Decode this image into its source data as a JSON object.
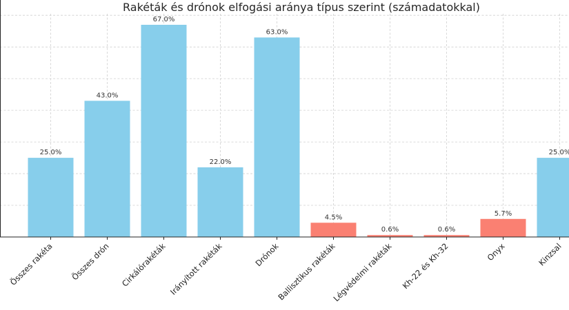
{
  "chart_data": {
    "type": "bar",
    "title": "Rakéták és drónok elfogási aránya típus szerint (számadatokkal)",
    "xlabel": "",
    "ylabel": "",
    "ylim": [
      0,
      75
    ],
    "grid": true,
    "categories": [
      "Összes rakéta",
      "Összes drón",
      "Cirkálórakéták",
      "Irányított rakéták",
      "Drónok",
      "Ballisztikus rakéták",
      "Légvédelmi rakéták",
      "Kh-22 és Kh-32",
      "Onyx",
      "Kinzsal"
    ],
    "values": [
      25.0,
      43.0,
      67.0,
      22.0,
      63.0,
      4.5,
      0.6,
      0.6,
      5.7,
      25.0
    ],
    "value_labels": [
      "25.0%",
      "43.0%",
      "67.0%",
      "22.0%",
      "63.0%",
      "4.5%",
      "0.6%",
      "0.6%",
      "5.7%",
      "25.0%"
    ],
    "colors": [
      "#87ceeb",
      "#87ceeb",
      "#87ceeb",
      "#87ceeb",
      "#87ceeb",
      "#fa8072",
      "#fa8072",
      "#fa8072",
      "#fa8072",
      "#87ceeb"
    ]
  }
}
